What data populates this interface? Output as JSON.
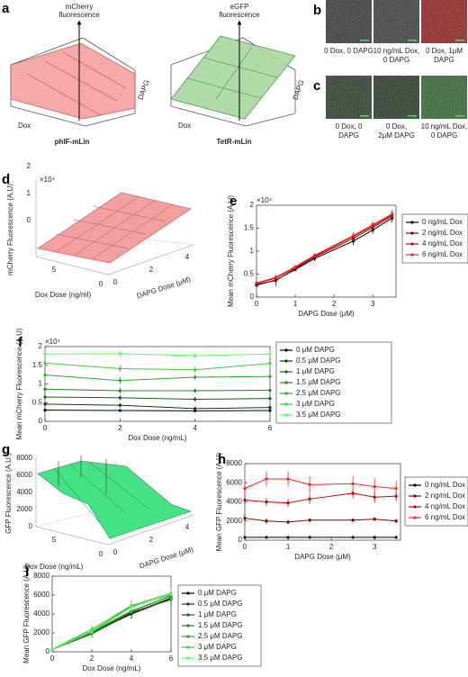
{
  "panel_a": {
    "label": "a",
    "left": {
      "z_label": [
        "mCherry",
        "fluorescence"
      ],
      "x_label": "Dox",
      "y_label": "DAPG",
      "name": "phlF-mLin"
    },
    "right": {
      "z_label": [
        "eGFP",
        "fluorescence"
      ],
      "x_label": "Dox",
      "y_label": "DAPG",
      "name": "TetR-mLin"
    }
  },
  "panel_b": {
    "label": "b",
    "captions": [
      [
        "0 Dox, 0 DAPG"
      ],
      [
        "10 ng/mL Dox,",
        "0 DAPG"
      ],
      [
        "0 Dox, 1μM",
        "DAPG"
      ]
    ]
  },
  "panel_c": {
    "label": "c",
    "captions": [
      [
        "0 Dox, 0",
        "DAPG"
      ],
      [
        "0 Dox,",
        "2μM DAPG"
      ],
      [
        "10 ng/mL Dox,",
        "0 DAPG"
      ]
    ]
  },
  "surface_d": {
    "label": "d",
    "multiplier": "×10⁴",
    "z_label": "mCherry Fluorescence (A.U)",
    "z_ticks": [
      "0",
      "1",
      "2"
    ],
    "dox_label": "Dox Dose (ng/ml)",
    "dox_ticks": [
      "5",
      "0"
    ],
    "dapg_label": "DAPG Dose (μM)",
    "dapg_ticks": [
      "0",
      "2",
      "4"
    ]
  },
  "surface_g": {
    "label": "g",
    "z_label": "GFP Fluorescence (A.U.)",
    "z_ticks": [
      "0",
      "2000",
      "4000",
      "6000",
      "8000"
    ],
    "dox_label": "Dox Dose (ng/mL)",
    "dox_ticks": [
      "5",
      "0"
    ],
    "dapg_label": "DAPG Dose (μM)",
    "dapg_ticks": [
      "0",
      "2",
      "4"
    ]
  },
  "chart_data": [
    {
      "type": "line",
      "panel": "e",
      "x_label": "DAPG Dose (μM)",
      "y_label": "Mean mCherry Fluorescence (A.U)",
      "y_multiplier": "×10⁴",
      "x": [
        0,
        0.5,
        1,
        1.5,
        2.5,
        3,
        3.5
      ],
      "xlim": [
        0,
        3.6
      ],
      "xticks": [
        0,
        1,
        2,
        3
      ],
      "ylim": [
        0,
        20000
      ],
      "yticks": [
        0,
        {
          "value": 5000,
          "label": "0.5"
        },
        {
          "value": 10000,
          "label": "1"
        },
        {
          "value": 15000,
          "label": "1.5"
        },
        {
          "value": 20000,
          "label": "2"
        }
      ],
      "series": [
        {
          "name": "0 ng/mL Dox",
          "color": "#000000",
          "values": [
            2600,
            3700,
            6000,
            8400,
            12200,
            14600,
            17200
          ],
          "errors": [
            400,
            500,
            400,
            500,
            900,
            800,
            900
          ]
        },
        {
          "name": "2 ng/mL Dox",
          "color": "#7a0000",
          "values": [
            2800,
            3600,
            6200,
            8700,
            12800,
            15200,
            17600
          ],
          "errors": [
            400,
            1200,
            500,
            600,
            800,
            900,
            800
          ]
        },
        {
          "name": "4 ng/mL Dox",
          "color": "#c40000",
          "values": [
            3000,
            4100,
            6400,
            8900,
            13200,
            15500,
            17900
          ],
          "errors": [
            300,
            500,
            400,
            500,
            700,
            800,
            1000
          ]
        },
        {
          "name": "6 ng/mL Dox",
          "color": "#ff2020",
          "values": [
            3100,
            4300,
            6600,
            9100,
            13400,
            15800,
            18100
          ],
          "errors": [
            300,
            400,
            400,
            500,
            700,
            700,
            900
          ]
        }
      ]
    },
    {
      "type": "line",
      "panel": "f",
      "x_label": "Dox Dose (ng/mL)",
      "y_label": "Mean mCherry Fluorescence (A.U)",
      "y_multiplier": "×10⁴",
      "x": [
        0,
        2,
        4,
        6
      ],
      "xlim": [
        0,
        6
      ],
      "xticks": [
        0,
        2,
        4,
        6
      ],
      "ylim": [
        0,
        20000
      ],
      "yticks": [
        0,
        {
          "value": 5000,
          "label": "0.5"
        },
        {
          "value": 10000,
          "label": "1"
        },
        {
          "value": 15000,
          "label": "1.5"
        },
        {
          "value": 20000,
          "label": "2"
        }
      ],
      "series": [
        {
          "name": "0 μM DAPG",
          "color": "#000000",
          "values": [
            3000,
            2900,
            2800,
            2900
          ],
          "errors": [
            300,
            300,
            300,
            300
          ]
        },
        {
          "name": "0.5 μM DAPG",
          "color": "#0f3d0f",
          "values": [
            4600,
            4300,
            3400,
            3700
          ],
          "errors": [
            400,
            600,
            500,
            400
          ]
        },
        {
          "name": "1 μM DAPG",
          "color": "#1a5c1a",
          "values": [
            6500,
            6300,
            5900,
            6100
          ],
          "errors": [
            400,
            700,
            600,
            500
          ]
        },
        {
          "name": "1.5 μM DAPG",
          "color": "#238023",
          "values": [
            8600,
            8200,
            8200,
            8300
          ],
          "errors": [
            500,
            800,
            600,
            600
          ]
        },
        {
          "name": "2.5 μM DAPG",
          "color": "#2ea62e",
          "values": [
            12400,
            10900,
            11800,
            12000
          ],
          "errors": [
            600,
            1000,
            700,
            700
          ]
        },
        {
          "name": "3 μM DAPG",
          "color": "#3ccc3c",
          "values": [
            15600,
            14100,
            13800,
            15500
          ],
          "errors": [
            700,
            900,
            800,
            800
          ]
        },
        {
          "name": "3.5 μM DAPG",
          "color": "#55ff55",
          "values": [
            18000,
            18100,
            17600,
            18000
          ],
          "errors": [
            700,
            800,
            700,
            900
          ]
        }
      ]
    },
    {
      "type": "line",
      "panel": "h",
      "x_label": "DAPG Dose (μM)",
      "y_label": "Mean GFP Fluorescence (A.U)",
      "x": [
        0,
        0.5,
        1,
        1.5,
        2.5,
        3,
        3.5
      ],
      "xlim": [
        0,
        3.6
      ],
      "xticks": [
        0,
        1,
        2,
        3
      ],
      "ylim": [
        0,
        8000
      ],
      "yticks": [
        0,
        2000,
        4000,
        6000,
        8000
      ],
      "series": [
        {
          "name": "0 ng/mL Dox",
          "color": "#000000",
          "values": [
            300,
            300,
            300,
            300,
            300,
            300,
            300
          ],
          "errors": [
            50,
            50,
            50,
            50,
            50,
            50,
            50
          ]
        },
        {
          "name": "2 ng/mL Dox",
          "color": "#7a0000",
          "values": [
            2300,
            2000,
            1900,
            2100,
            2100,
            2200,
            2000
          ],
          "errors": [
            400,
            300,
            200,
            200,
            200,
            200,
            200
          ]
        },
        {
          "name": "4 ng/mL Dox",
          "color": "#c40000",
          "values": [
            4200,
            4000,
            3900,
            4300,
            4900,
            4500,
            4600
          ],
          "errors": [
            500,
            400,
            400,
            500,
            500,
            600,
            500
          ]
        },
        {
          "name": "6 ng/mL Dox",
          "color": "#ff2020",
          "values": [
            5400,
            6400,
            6400,
            5800,
            5900,
            5600,
            5400
          ],
          "errors": [
            900,
            800,
            800,
            900,
            800,
            900,
            800
          ]
        }
      ]
    },
    {
      "type": "line",
      "panel": "i",
      "x_label": "Dox Dose (ng/mL)",
      "y_label": "Mean GFP Fluorescence (A.U)",
      "x": [
        0,
        2,
        4,
        6
      ],
      "xlim": [
        0,
        6
      ],
      "xticks": [
        0,
        2,
        4,
        6
      ],
      "ylim": [
        0,
        8000
      ],
      "yticks": [
        0,
        2000,
        4000,
        6000,
        8000
      ],
      "series": [
        {
          "name": "0 μM DAPG",
          "color": "#000000",
          "values": [
            250,
            2000,
            4000,
            5600
          ],
          "errors": [
            50,
            300,
            500,
            600
          ]
        },
        {
          "name": "0.5 μM DAPG",
          "color": "#0f3d0f",
          "values": [
            250,
            1900,
            4100,
            5700
          ],
          "errors": [
            50,
            400,
            600,
            700
          ]
        },
        {
          "name": "1 μM DAPG",
          "color": "#1a5c1a",
          "values": [
            250,
            2100,
            4300,
            5900
          ],
          "errors": [
            50,
            400,
            600,
            700
          ]
        },
        {
          "name": "1.5 μM DAPG",
          "color": "#238023",
          "values": [
            250,
            2000,
            4200,
            5500
          ],
          "errors": [
            50,
            400,
            600,
            700
          ]
        },
        {
          "name": "2.5 μM DAPG",
          "color": "#2ea62e",
          "values": [
            250,
            2200,
            4800,
            6000
          ],
          "errors": [
            50,
            400,
            600,
            700
          ]
        },
        {
          "name": "3 μM DAPG",
          "color": "#3ccc3c",
          "values": [
            250,
            2400,
            4900,
            6200
          ],
          "errors": [
            50,
            400,
            600,
            700
          ]
        },
        {
          "name": "3.5 μM DAPG",
          "color": "#55ff55",
          "values": [
            250,
            2100,
            4700,
            6100
          ],
          "errors": [
            50,
            400,
            600,
            700
          ]
        }
      ]
    }
  ]
}
